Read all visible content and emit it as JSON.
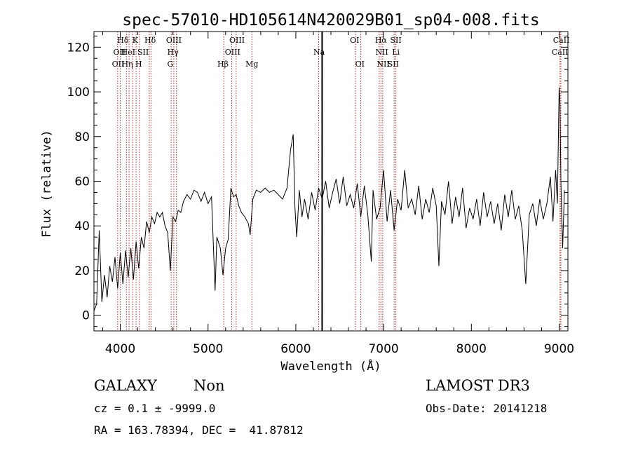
{
  "chart_data": {
    "type": "line",
    "title": "spec-57010-HD105614N420029B01_sp04-008.fits",
    "xlabel": "Wavelength (Å)",
    "ylabel": "Flux (relative)",
    "xlim": [
      3700,
      9100
    ],
    "ylim": [
      -7,
      127
    ],
    "xticks": [
      4000,
      5000,
      6000,
      7000,
      8000,
      9000
    ],
    "yticks": [
      0,
      20,
      40,
      60,
      80,
      100,
      120
    ],
    "grid": false,
    "series": [
      {
        "name": "flux",
        "points": [
          [
            3700,
            2
          ],
          [
            3730,
            5
          ],
          [
            3760,
            38
          ],
          [
            3790,
            6
          ],
          [
            3820,
            18
          ],
          [
            3850,
            8
          ],
          [
            3880,
            22
          ],
          [
            3910,
            15
          ],
          [
            3940,
            26
          ],
          [
            3970,
            12
          ],
          [
            4000,
            28
          ],
          [
            4030,
            14
          ],
          [
            4060,
            29
          ],
          [
            4090,
            17
          ],
          [
            4120,
            30
          ],
          [
            4150,
            16
          ],
          [
            4180,
            33
          ],
          [
            4210,
            21
          ],
          [
            4240,
            35
          ],
          [
            4270,
            30
          ],
          [
            4300,
            42
          ],
          [
            4330,
            37
          ],
          [
            4360,
            44
          ],
          [
            4390,
            41
          ],
          [
            4420,
            46
          ],
          [
            4450,
            44
          ],
          [
            4480,
            46
          ],
          [
            4510,
            40
          ],
          [
            4540,
            37
          ],
          [
            4570,
            20
          ],
          [
            4600,
            44
          ],
          [
            4630,
            42
          ],
          [
            4660,
            47
          ],
          [
            4690,
            46
          ],
          [
            4720,
            51
          ],
          [
            4760,
            54
          ],
          [
            4800,
            52
          ],
          [
            4840,
            56
          ],
          [
            4880,
            55
          ],
          [
            4920,
            51
          ],
          [
            4960,
            55
          ],
          [
            5000,
            50
          ],
          [
            5040,
            53
          ],
          [
            5080,
            11
          ],
          [
            5100,
            35
          ],
          [
            5140,
            30
          ],
          [
            5170,
            18
          ],
          [
            5200,
            30
          ],
          [
            5230,
            34
          ],
          [
            5260,
            57
          ],
          [
            5290,
            53
          ],
          [
            5320,
            54
          ],
          [
            5350,
            49
          ],
          [
            5380,
            46
          ],
          [
            5420,
            44
          ],
          [
            5460,
            41
          ],
          [
            5480,
            36
          ],
          [
            5510,
            52
          ],
          [
            5550,
            56
          ],
          [
            5600,
            55
          ],
          [
            5650,
            57
          ],
          [
            5700,
            55
          ],
          [
            5750,
            56
          ],
          [
            5800,
            54
          ],
          [
            5850,
            52
          ],
          [
            5900,
            57
          ],
          [
            5940,
            74
          ],
          [
            5970,
            81
          ],
          [
            5990,
            48
          ],
          [
            6010,
            35
          ],
          [
            6040,
            56
          ],
          [
            6070,
            44
          ],
          [
            6100,
            52
          ],
          [
            6140,
            43
          ],
          [
            6180,
            55
          ],
          [
            6220,
            47
          ],
          [
            6260,
            57
          ],
          [
            6300,
            52
          ],
          [
            6340,
            60
          ],
          [
            6380,
            48
          ],
          [
            6420,
            55
          ],
          [
            6460,
            61
          ],
          [
            6500,
            50
          ],
          [
            6540,
            62
          ],
          [
            6580,
            49
          ],
          [
            6620,
            54
          ],
          [
            6660,
            48
          ],
          [
            6700,
            59
          ],
          [
            6740,
            44
          ],
          [
            6780,
            58
          ],
          [
            6820,
            45
          ],
          [
            6860,
            24
          ],
          [
            6880,
            56
          ],
          [
            6920,
            43
          ],
          [
            6960,
            48
          ],
          [
            7000,
            65
          ],
          [
            7040,
            42
          ],
          [
            7080,
            56
          ],
          [
            7120,
            38
          ],
          [
            7160,
            52
          ],
          [
            7200,
            47
          ],
          [
            7240,
            65
          ],
          [
            7280,
            48
          ],
          [
            7320,
            52
          ],
          [
            7360,
            45
          ],
          [
            7400,
            58
          ],
          [
            7440,
            43
          ],
          [
            7480,
            52
          ],
          [
            7520,
            46
          ],
          [
            7560,
            57
          ],
          [
            7600,
            49
          ],
          [
            7630,
            22
          ],
          [
            7660,
            51
          ],
          [
            7700,
            45
          ],
          [
            7740,
            60
          ],
          [
            7780,
            41
          ],
          [
            7820,
            53
          ],
          [
            7860,
            44
          ],
          [
            7900,
            57
          ],
          [
            7940,
            39
          ],
          [
            7980,
            48
          ],
          [
            8020,
            43
          ],
          [
            8060,
            52
          ],
          [
            8100,
            40
          ],
          [
            8140,
            55
          ],
          [
            8180,
            44
          ],
          [
            8220,
            51
          ],
          [
            8260,
            41
          ],
          [
            8300,
            50
          ],
          [
            8340,
            38
          ],
          [
            8380,
            54
          ],
          [
            8420,
            44
          ],
          [
            8460,
            56
          ],
          [
            8500,
            43
          ],
          [
            8540,
            49
          ],
          [
            8580,
            38
          ],
          [
            8620,
            14
          ],
          [
            8660,
            45
          ],
          [
            8700,
            50
          ],
          [
            8740,
            40
          ],
          [
            8780,
            52
          ],
          [
            8820,
            43
          ],
          [
            8860,
            50
          ],
          [
            8900,
            62
          ],
          [
            8930,
            42
          ],
          [
            8960,
            65
          ],
          [
            8980,
            50
          ],
          [
            9000,
            102
          ],
          [
            9010,
            95
          ],
          [
            9020,
            60
          ],
          [
            9040,
            30
          ],
          [
            9060,
            56
          ]
        ]
      }
    ],
    "spectral_lines": [
      {
        "label": "Hδ",
        "x": 4030,
        "row": 0
      },
      {
        "label": "OII",
        "x": 3990,
        "row": 1
      },
      {
        "label": "OII",
        "x": 3975,
        "row": 2
      },
      {
        "label": "HeI",
        "x": 4090,
        "row": 1
      },
      {
        "label": "Hη",
        "x": 4080,
        "row": 2
      },
      {
        "label": "K",
        "x": 4170,
        "row": 0
      },
      {
        "label": "SII",
        "x": 4260,
        "row": 1
      },
      {
        "label": "H",
        "x": 4210,
        "row": 2
      },
      {
        "label": "Hδ",
        "x": 4340,
        "row": 0
      },
      {
        "label": "OIII",
        "x": 4610,
        "row": 0
      },
      {
        "label": "Hγ",
        "x": 4600,
        "row": 1
      },
      {
        "label": "G",
        "x": 4570,
        "row": 2
      },
      {
        "label": "OIII",
        "x": 5330,
        "row": 0
      },
      {
        "label": "OIII",
        "x": 5280,
        "row": 1
      },
      {
        "label": "Hβ",
        "x": 5170,
        "row": 2
      },
      {
        "label": "Mg",
        "x": 5500,
        "row": 2
      },
      {
        "label": "Na",
        "x": 6265,
        "row": 1
      },
      {
        "label": "OI",
        "x": 6670,
        "row": 0
      },
      {
        "label": "OI",
        "x": 6730,
        "row": 2
      },
      {
        "label": "Hα",
        "x": 6970,
        "row": 0
      },
      {
        "label": "NII",
        "x": 6980,
        "row": 1
      },
      {
        "label": "NII",
        "x": 6995,
        "row": 2
      },
      {
        "label": "SII",
        "x": 7140,
        "row": 0
      },
      {
        "label": "Li",
        "x": 7140,
        "row": 1
      },
      {
        "label": "SII",
        "x": 7110,
        "row": 2
      },
      {
        "label": "CaII",
        "x": 9025,
        "row": 0
      },
      {
        "label": "CaII",
        "x": 9010,
        "row": 1
      }
    ],
    "line_markers": [
      3970,
      4000,
      4070,
      4100,
      4140,
      4180,
      4220,
      4330,
      4350,
      4580,
      4610,
      4640,
      5180,
      5270,
      5320,
      5500,
      6260,
      6680,
      6740,
      6950,
      6970,
      6990,
      7120,
      7140,
      9010,
      9020
    ]
  },
  "footer": {
    "object_type": "GALAXY",
    "subclass": "Non",
    "survey": "LAMOST DR3",
    "redshift_line": "cz = 0.1 ± -9999.0",
    "obs_date_line": "Obs-Date: 20141218",
    "coords_line": "RA = 163.78394, DEC =  41.87812"
  },
  "colors": {
    "axes": "#000000",
    "spectrum": "#000000",
    "marker_lines": "#cc2222",
    "sky_line": "#000000"
  }
}
